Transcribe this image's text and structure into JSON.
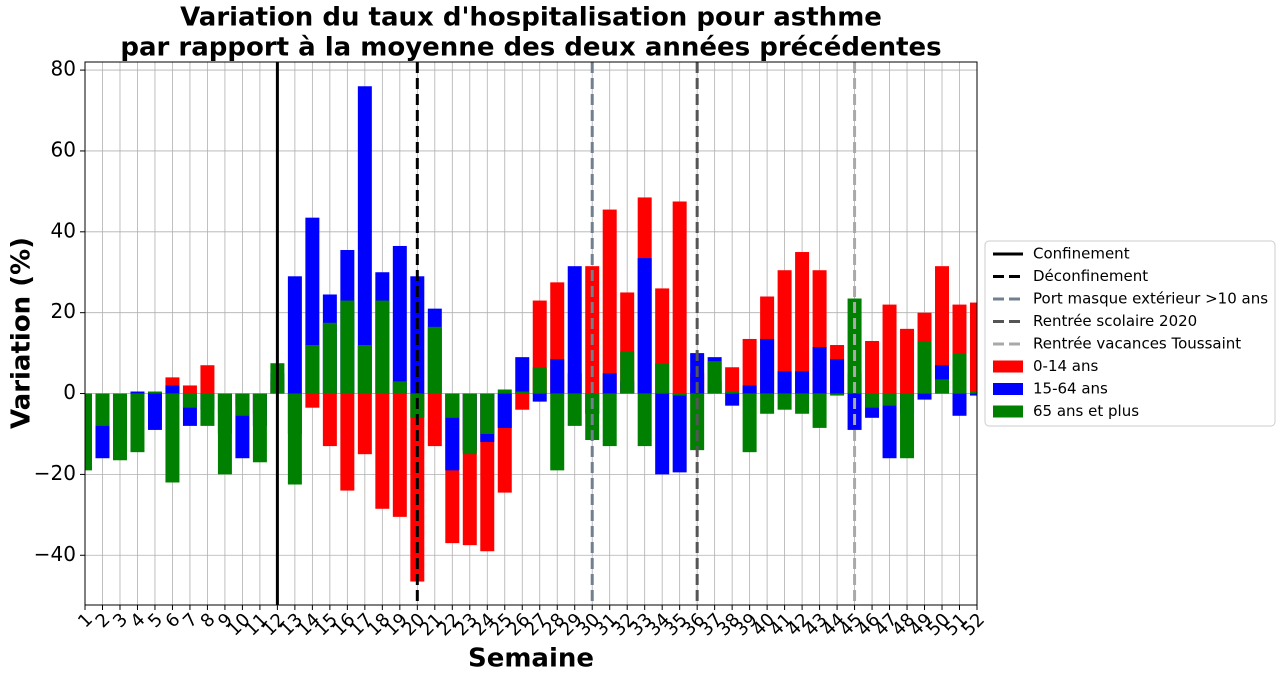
{
  "chart_data": {
    "type": "bar",
    "title": [
      "Variation du taux d'hospitalisation pour asthme",
      "par rapport à la moyenne des deux années précédentes"
    ],
    "x_label": "Semaine",
    "y_label": "Variation (%)",
    "x": [
      1,
      2,
      3,
      4,
      5,
      6,
      7,
      8,
      9,
      10,
      11,
      12,
      13,
      14,
      15,
      16,
      17,
      18,
      19,
      20,
      21,
      22,
      23,
      24,
      25,
      26,
      27,
      28,
      29,
      30,
      31,
      32,
      33,
      34,
      35,
      36,
      37,
      38,
      39,
      40,
      41,
      42,
      43,
      44,
      45,
      46,
      47,
      48,
      49,
      50,
      51,
      52
    ],
    "xlim": [
      1,
      52
    ],
    "xticks": [
      1,
      2,
      3,
      4,
      5,
      6,
      7,
      8,
      9,
      10,
      11,
      12,
      13,
      14,
      15,
      16,
      17,
      18,
      19,
      20,
      21,
      22,
      23,
      24,
      25,
      26,
      27,
      28,
      29,
      30,
      31,
      32,
      33,
      34,
      35,
      36,
      37,
      38,
      39,
      40,
      41,
      42,
      43,
      44,
      45,
      46,
      47,
      48,
      49,
      50,
      51,
      52
    ],
    "ylim": [
      -52.3,
      82
    ],
    "yticks": [
      {
        "value": -40,
        "label": "−40"
      },
      {
        "value": -20,
        "label": "−20"
      },
      0,
      20,
      40,
      60,
      80
    ],
    "grid": true,
    "legend": "right",
    "vlines": [
      {
        "name": "Confinement",
        "x": 12,
        "color": "#000000",
        "style": "solid"
      },
      {
        "name": "Déconfinement",
        "x": 20,
        "color": "#000000",
        "style": "dashed"
      },
      {
        "name": "Port masque extérieur >10 ans",
        "x": 30,
        "color": "#708090",
        "style": "dashed"
      },
      {
        "name": "Rentrée scolaire 2020",
        "x": 36,
        "color": "#555555",
        "style": "dashed"
      },
      {
        "name": "Rentrée vacances Toussaint",
        "x": 45,
        "color": "#a9a9a9",
        "style": "dashed"
      }
    ],
    "series": [
      {
        "name": "0-14 ans",
        "color": "#ff0000",
        "values": [
          -5,
          -5,
          -4,
          0.3,
          -3,
          4,
          2,
          7,
          -5,
          -3,
          -5,
          3,
          -10,
          -3.5,
          -13,
          -24,
          -15,
          -28.5,
          -30.5,
          -46.5,
          -13,
          -37,
          -37.5,
          -39,
          -24.5,
          -4,
          23,
          27.5,
          5,
          31.5,
          45.5,
          25,
          48.5,
          26,
          47.5,
          5,
          3,
          6.5,
          13.5,
          24,
          30.5,
          35,
          30.5,
          12,
          5,
          13,
          22,
          16,
          20,
          31.5,
          22,
          22.5
        ]
      },
      {
        "name": "15-64 ans",
        "color": "#0000ff",
        "values": [
          -15,
          -16,
          -10,
          0.5,
          -9,
          2,
          -8,
          -4,
          -10,
          -16,
          -8,
          5,
          29,
          43.5,
          24.5,
          35.5,
          76,
          30,
          36.5,
          29,
          21,
          -19,
          -14,
          -12,
          -8.5,
          9,
          -2,
          8.5,
          31.5,
          -5,
          5,
          3,
          33.5,
          -20,
          -19.5,
          10,
          9,
          -3,
          2,
          13.5,
          5.5,
          5.5,
          11.5,
          8.5,
          -9,
          -6,
          -16,
          -5,
          -1.5,
          7,
          -5.5,
          -0.5
        ]
      },
      {
        "name": "65 ans et plus",
        "color": "#008000",
        "values": [
          -19,
          -8,
          -16.5,
          -14.5,
          0.5,
          -22,
          -3.5,
          -8,
          -20,
          -5.5,
          -17,
          7.5,
          -22.5,
          12,
          17.5,
          23,
          12,
          23,
          3,
          -6,
          16.5,
          -6,
          -15,
          -10,
          1,
          0.5,
          6.5,
          -19,
          -8,
          -11.5,
          -13,
          10.5,
          -13,
          7.5,
          -0.5,
          -14,
          8,
          0.5,
          -14.5,
          -5,
          -4,
          -5,
          -8.5,
          -0.5,
          23.5,
          -3.5,
          -3,
          -16,
          13,
          3.5,
          10,
          0.5
        ]
      }
    ]
  }
}
